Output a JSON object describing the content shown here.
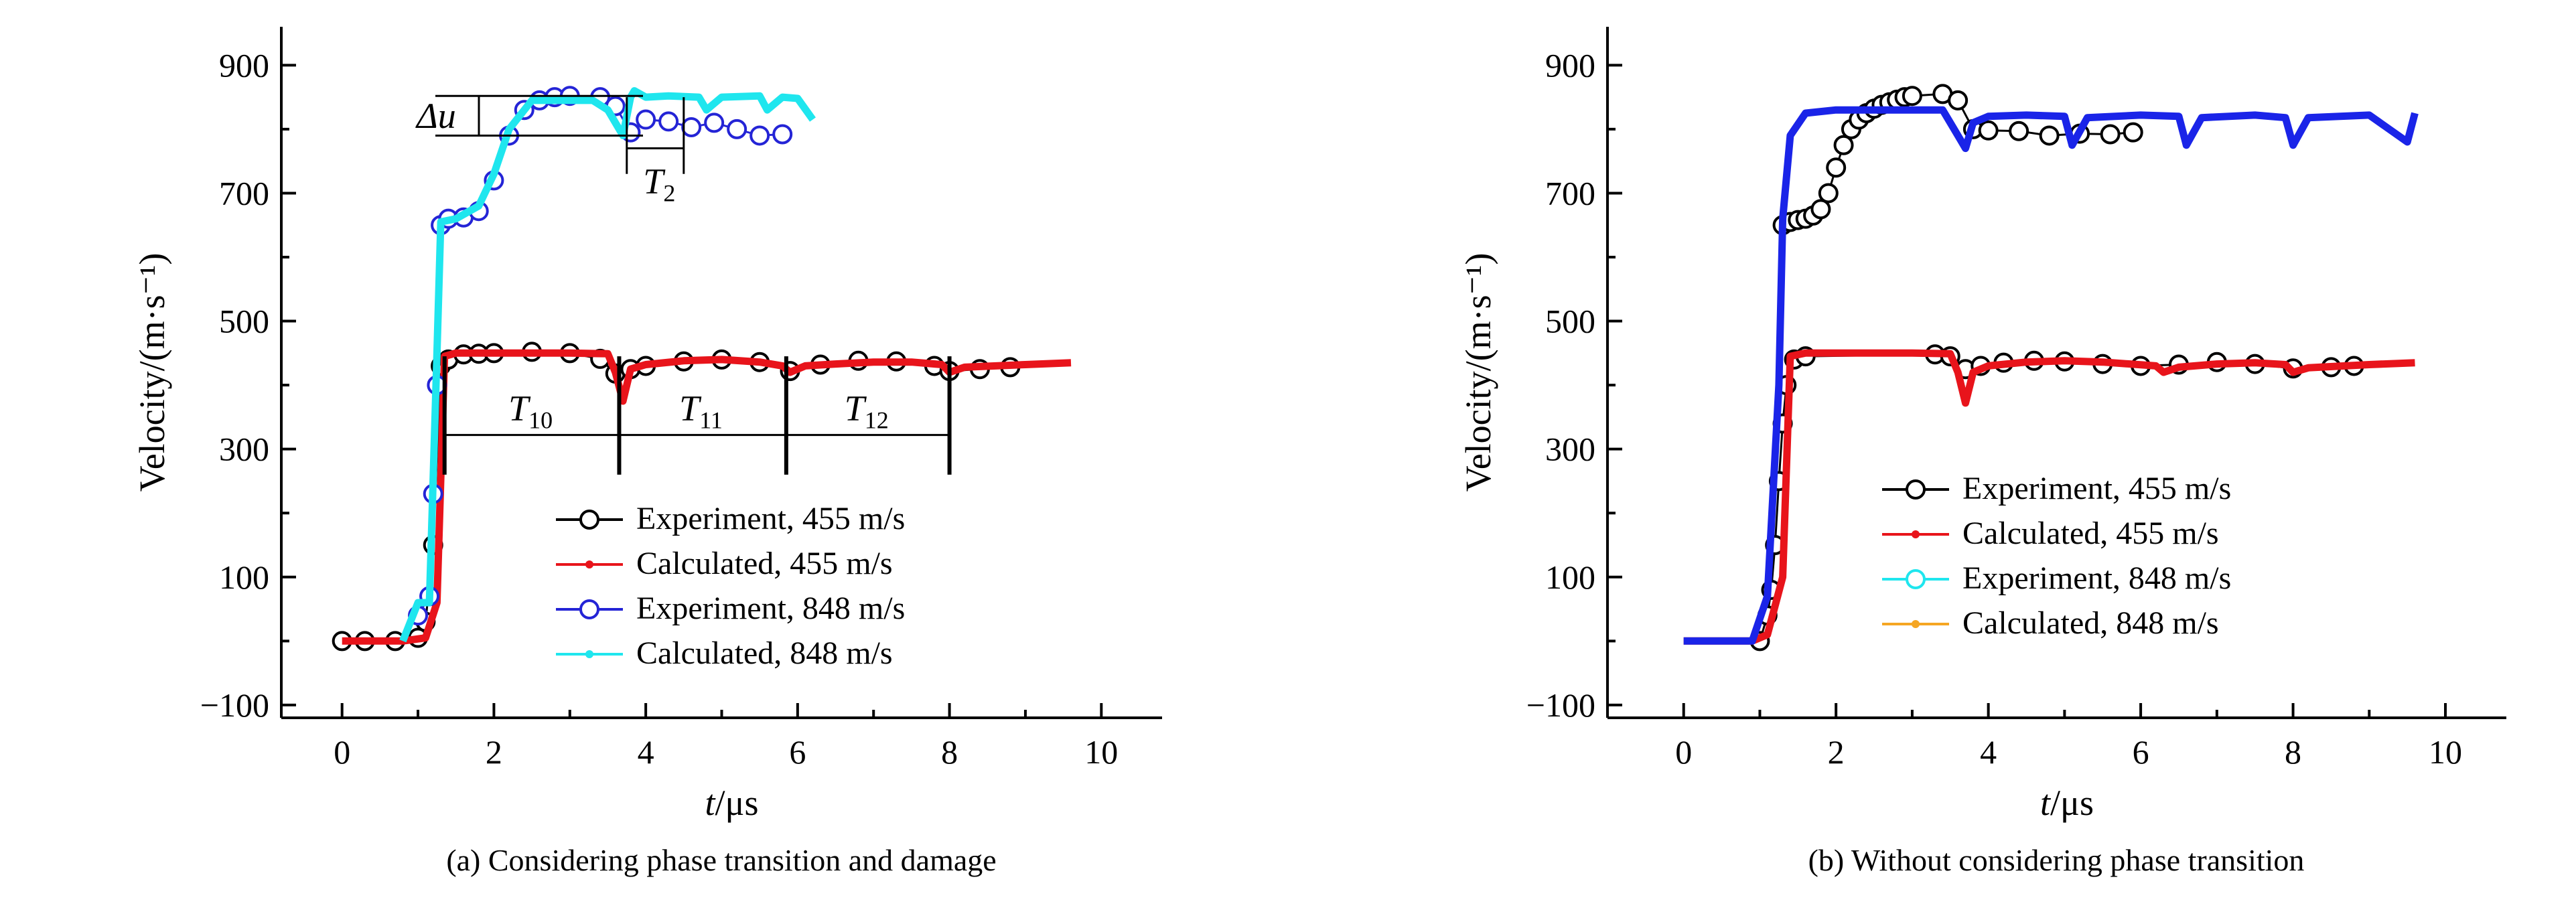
{
  "chart_data": [
    {
      "type": "line",
      "panel_caption": "(a) Considering phase transition and damage",
      "ylabel": "Velocity/(m·s⁻¹)",
      "xlabel_italic": "t",
      "xlabel_unit": "/μs",
      "xlim": [
        -0.8,
        10.8
      ],
      "ylim": [
        -120,
        960
      ],
      "xticks": [
        0,
        2,
        4,
        6,
        8,
        10
      ],
      "yticks": [
        -100,
        100,
        300,
        500,
        700,
        900
      ],
      "legend_position": "bottom-right",
      "legend": [
        "Experiment, 455 m/s",
        "Calculated, 455 m/s",
        "Experiment, 848 m/s",
        "Calculated, 848 m/s"
      ],
      "series": [
        {
          "name": "Experiment, 455 m/s",
          "color": "#000000",
          "marker": "open-circle",
          "x": [
            0.0,
            0.3,
            0.7,
            1.0,
            1.1,
            1.2,
            1.3,
            1.4,
            1.6,
            1.8,
            2.0,
            2.5,
            3.0,
            3.4,
            3.6,
            3.8,
            4.0,
            4.5,
            5.0,
            5.5,
            5.9,
            6.3,
            6.8,
            7.3,
            7.8,
            8.0,
            8.4,
            8.8
          ],
          "y": [
            0,
            0,
            0,
            5,
            30,
            150,
            430,
            440,
            448,
            449,
            450,
            452,
            450,
            441,
            418,
            425,
            430,
            437,
            440,
            436,
            422,
            432,
            438,
            437,
            430,
            422,
            425,
            428
          ]
        },
        {
          "name": "Calculated, 455 m/s",
          "color": "#e8141b",
          "marker": "line",
          "x": [
            0.0,
            0.8,
            1.1,
            1.25,
            1.35,
            1.5,
            2.0,
            2.5,
            3.0,
            3.5,
            3.6,
            3.7,
            3.8,
            4.0,
            4.5,
            5.0,
            5.5,
            5.8,
            5.9,
            6.1,
            6.5,
            7.0,
            7.5,
            7.9,
            8.0,
            8.2,
            9.0,
            9.6
          ],
          "y": [
            0,
            0,
            5,
            60,
            445,
            450,
            450,
            450,
            450,
            449,
            420,
            375,
            425,
            432,
            438,
            440,
            436,
            430,
            420,
            430,
            433,
            436,
            436,
            432,
            420,
            428,
            432,
            435
          ]
        },
        {
          "name": "Experiment, 848 m/s",
          "color": "#2424d6",
          "marker": "open-circle",
          "x": [
            1.0,
            1.15,
            1.2,
            1.25,
            1.3,
            1.4,
            1.6,
            1.8,
            2.0,
            2.2,
            2.4,
            2.6,
            2.8,
            3.0,
            3.4,
            3.6,
            3.8,
            4.0,
            4.3,
            4.6,
            4.9,
            5.2,
            5.5,
            5.8
          ],
          "y": [
            40,
            70,
            230,
            400,
            650,
            660,
            662,
            672,
            720,
            790,
            830,
            845,
            850,
            852,
            850,
            836,
            795,
            815,
            812,
            803,
            810,
            800,
            790,
            792
          ]
        },
        {
          "name": "Calculated, 848 m/s",
          "color": "#1fe6ee",
          "marker": "line",
          "x": [
            0.8,
            1.0,
            1.15,
            1.25,
            1.3,
            1.5,
            1.8,
            2.0,
            2.2,
            2.5,
            3.0,
            3.3,
            3.5,
            3.7,
            3.8,
            3.85,
            4.0,
            4.3,
            4.7,
            4.8,
            5.0,
            5.5,
            5.6,
            5.8,
            6.0,
            6.2
          ],
          "y": [
            0,
            60,
            60,
            450,
            655,
            660,
            680,
            730,
            800,
            845,
            845,
            845,
            830,
            790,
            850,
            860,
            850,
            852,
            850,
            830,
            850,
            852,
            830,
            850,
            848,
            815
          ]
        }
      ],
      "annotations": {
        "delta_u": "Δu",
        "t2": {
          "letter": "T",
          "sub": "2"
        },
        "t10": {
          "letter": "T",
          "sub": "10"
        },
        "t11": {
          "letter": "T",
          "sub": "11"
        },
        "t12": {
          "letter": "T",
          "sub": "12"
        }
      }
    },
    {
      "type": "line",
      "panel_caption": "(b) Without considering phase transition",
      "ylabel": "Velocity/(m·s⁻¹)",
      "xlabel_italic": "t",
      "xlabel_unit": "/μs",
      "xlim": [
        -1.0,
        10.8
      ],
      "ylim": [
        -120,
        960
      ],
      "xticks": [
        0,
        2,
        4,
        6,
        8,
        10
      ],
      "yticks": [
        -100,
        100,
        300,
        500,
        700,
        900
      ],
      "legend_position": "center-right",
      "legend": [
        "Experiment, 455 m/s",
        "Calculated, 455 m/s",
        "Experiment, 848 m/s",
        "Calculated, 848 m/s"
      ],
      "series": [
        {
          "name": "Experiment, 455 m/s",
          "color": "#000000",
          "marker": "open-circle",
          "x": [
            1.0,
            1.1,
            1.15,
            1.2,
            1.25,
            1.3,
            1.35,
            1.45,
            1.6,
            3.3,
            3.5,
            3.7,
            3.9,
            4.2,
            4.6,
            5.0,
            5.5,
            6.0,
            6.5,
            7.0,
            7.5,
            8.0,
            8.5,
            8.8
          ],
          "y": [
            0,
            40,
            80,
            150,
            250,
            340,
            400,
            440,
            445,
            448,
            445,
            425,
            430,
            435,
            438,
            437,
            433,
            430,
            432,
            436,
            433,
            426,
            428,
            430
          ]
        },
        {
          "name": "Calculated, 455 m/s",
          "color": "#e8141b",
          "marker": "line",
          "x": [
            0.0,
            0.9,
            1.1,
            1.3,
            1.4,
            1.6,
            2.0,
            2.5,
            3.0,
            3.5,
            3.6,
            3.7,
            3.8,
            4.0,
            4.5,
            5.0,
            5.5,
            6.2,
            6.3,
            6.5,
            7.0,
            7.5,
            7.9,
            8.0,
            8.2,
            9.0,
            9.6
          ],
          "y": [
            0,
            0,
            10,
            100,
            445,
            450,
            450,
            450,
            450,
            449,
            420,
            372,
            420,
            430,
            436,
            438,
            436,
            430,
            420,
            428,
            433,
            435,
            432,
            420,
            427,
            432,
            435
          ]
        },
        {
          "name": "Experiment, 848 m/s",
          "color": "#000000",
          "marker": "open-circle",
          "x": [
            1.3,
            1.4,
            1.5,
            1.6,
            1.7,
            1.8,
            1.9,
            2.0,
            2.1,
            2.2,
            2.3,
            2.4,
            2.5,
            2.6,
            2.7,
            2.8,
            2.9,
            3.0,
            3.4,
            3.6,
            3.8,
            4.0,
            4.4,
            4.8,
            5.2,
            5.6,
            5.9
          ],
          "y": [
            650,
            655,
            658,
            660,
            665,
            675,
            700,
            740,
            775,
            800,
            815,
            825,
            832,
            838,
            842,
            846,
            850,
            852,
            855,
            845,
            800,
            798,
            797,
            790,
            793,
            792,
            795
          ]
        },
        {
          "name": "Calculated, 848 m/s",
          "color": "#1a24e8",
          "marker": "line",
          "x": [
            0.0,
            0.9,
            1.1,
            1.25,
            1.3,
            1.4,
            1.6,
            2.0,
            2.5,
            3.0,
            3.4,
            3.6,
            3.7,
            3.8,
            4.0,
            4.5,
            5.0,
            5.1,
            5.3,
            6.0,
            6.5,
            6.6,
            6.8,
            7.5,
            7.9,
            8.0,
            8.2,
            9.0,
            9.5,
            9.6
          ],
          "y": [
            0,
            0,
            70,
            400,
            660,
            790,
            825,
            830,
            830,
            830,
            830,
            790,
            770,
            810,
            820,
            822,
            820,
            775,
            818,
            822,
            820,
            775,
            818,
            822,
            818,
            775,
            818,
            822,
            780,
            825
          ]
        }
      ]
    }
  ]
}
